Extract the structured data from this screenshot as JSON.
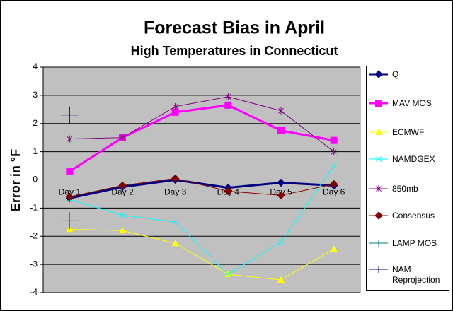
{
  "chart_data": {
    "type": "line",
    "title": "Forecast Bias in April",
    "subtitle": "High Temperatures in Connecticut",
    "y_label": "Error in °F",
    "categories": [
      "Day 1",
      "Day 2",
      "Day 3",
      "Day 4",
      "Day 5",
      "Day 6"
    ],
    "ylim": [
      -4,
      4
    ],
    "yticks": [
      -4,
      -3,
      -2,
      -1,
      0,
      1,
      2,
      3,
      4
    ],
    "grid": true,
    "legend": "right",
    "series": [
      {
        "name": "Q",
        "color": "#000080",
        "marker": "diamond",
        "line_width": 3,
        "values": [
          -0.65,
          -0.25,
          0.0,
          -0.28,
          -0.1,
          -0.2
        ]
      },
      {
        "name": "MAV MOS",
        "color": "#ff00ff",
        "marker": "square",
        "line_width": 3,
        "values": [
          0.3,
          1.5,
          2.4,
          2.65,
          1.75,
          1.4
        ]
      },
      {
        "name": "ECMWF",
        "color": "#ffff00",
        "marker": "triangle",
        "line_width": 1,
        "values": [
          -1.75,
          -1.8,
          -2.25,
          -3.35,
          -3.55,
          -2.45
        ]
      },
      {
        "name": "NAMDGEX",
        "color": "#00ffff",
        "marker": "x",
        "line_width": 1,
        "values": [
          -0.7,
          -1.25,
          -1.5,
          -3.35,
          -2.2,
          0.5
        ]
      },
      {
        "name": "850mb",
        "color": "#800080",
        "marker": "asterisk",
        "line_width": 1,
        "values": [
          1.45,
          1.5,
          2.6,
          2.95,
          2.45,
          1.0
        ]
      },
      {
        "name": "Consensus",
        "color": "#800000",
        "marker": "diamond",
        "line_width": 1,
        "values": [
          -0.6,
          -0.2,
          0.05,
          -0.4,
          -0.55,
          -0.15
        ]
      },
      {
        "name": "LAMP MOS",
        "color": "#008080",
        "marker": "plus",
        "line_width": 1,
        "values": [
          -1.45,
          null,
          null,
          null,
          null,
          null
        ]
      },
      {
        "name": "NAM Reprojection",
        "color": "#000080",
        "marker": "plus",
        "line_width": 1,
        "values": [
          2.3,
          null,
          null,
          null,
          null,
          null
        ]
      }
    ]
  }
}
